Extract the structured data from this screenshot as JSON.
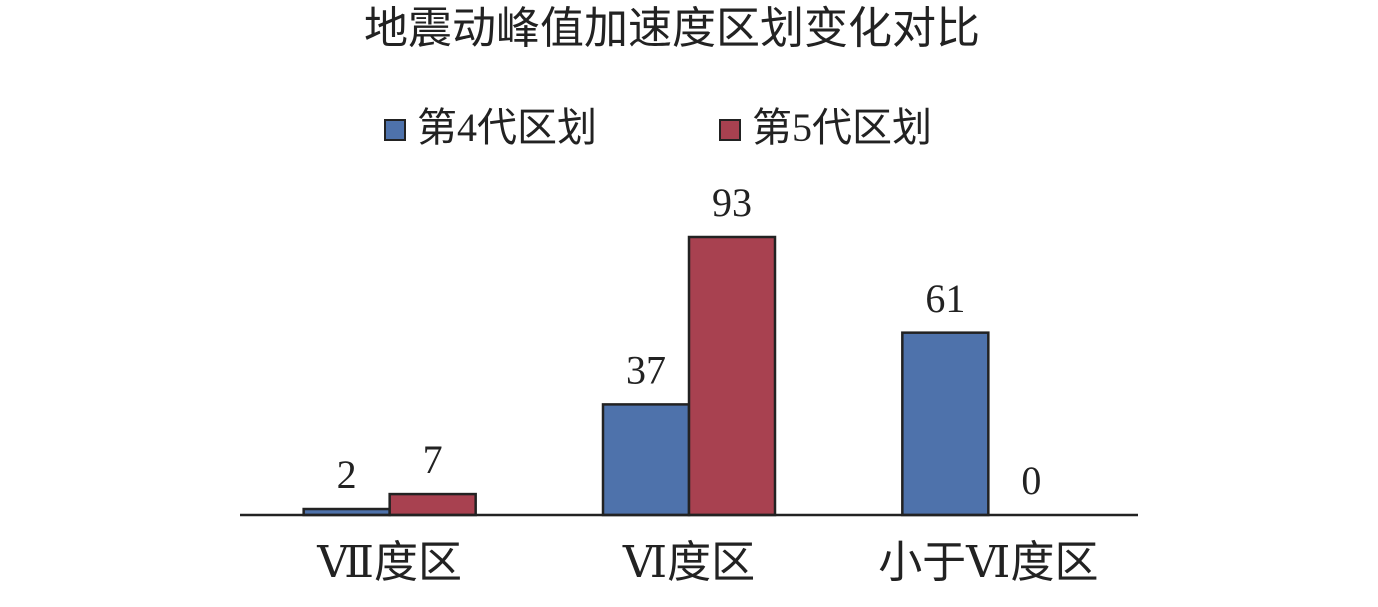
{
  "chart_data": {
    "type": "bar",
    "title": "地震动峰值加速度区划变化对比",
    "categories": [
      "Ⅶ度区",
      "Ⅵ度区",
      "小于Ⅵ度区"
    ],
    "series": [
      {
        "name": "第4代区划",
        "color": "#4e72ab",
        "values": [
          2,
          37,
          61
        ]
      },
      {
        "name": "第5代区划",
        "color": "#a84150",
        "values": [
          7,
          93,
          0
        ]
      }
    ],
    "legend": "top"
  }
}
